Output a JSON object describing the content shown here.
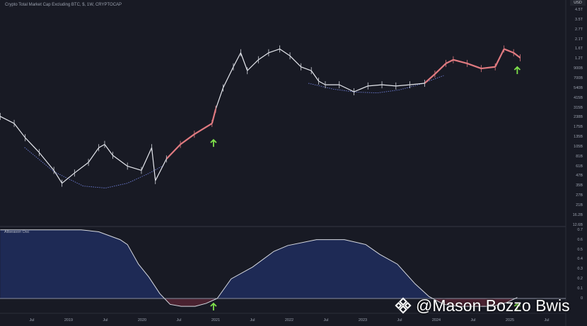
{
  "chart_data": [
    {
      "type": "line",
      "title": "Crypto Total Market Cap Excluding BTC, $, 1W, CRYPTOCAP",
      "currency_label": "USD",
      "yscale": "log",
      "ylabel": "USD",
      "ylim_billions": [
        12.6,
        4500
      ],
      "y_tick_labels": [
        "4.5T",
        "3.5T",
        "2.7T",
        "2.1T",
        "1.6T",
        "1.2T",
        "900B",
        "700B",
        "540B",
        "415B",
        "315B",
        "238B",
        "175B",
        "135B",
        "105B",
        "81B",
        "61B",
        "47B",
        "35B",
        "27B",
        "21B",
        "16.2B",
        "12.6B"
      ],
      "highlight_color": "#e07a80",
      "line_color": "#e6e8ee",
      "highlight_ranges_years": [
        [
          2020.4,
          2021.0
        ],
        [
          2023.85,
          2025.2
        ]
      ],
      "points": {
        "year": [
          2018.07,
          2018.26,
          2018.41,
          2018.6,
          2018.8,
          2018.91,
          2019.08,
          2019.27,
          2019.41,
          2019.49,
          2019.6,
          2019.8,
          2019.99,
          2020.13,
          2020.18,
          2020.33,
          2020.52,
          2020.71,
          2020.95,
          2021.0,
          2021.1,
          2021.24,
          2021.34,
          2021.43,
          2021.58,
          2021.72,
          2021.87,
          2022.01,
          2022.16,
          2022.3,
          2022.4,
          2022.49,
          2022.68,
          2022.88,
          2023.07,
          2023.26,
          2023.45,
          2023.64,
          2023.84,
          2023.98,
          2024.13,
          2024.23,
          2024.42,
          2024.61,
          2024.8,
          2024.92,
          2025.05,
          2025.14
        ],
        "market_cap_billions": [
          249,
          206,
          140,
          94,
          58,
          41,
          54,
          72,
          107,
          117,
          87,
          65,
          58,
          107,
          44,
          79,
          117,
          154,
          206,
          303,
          537,
          948,
          1388,
          856,
          1148,
          1388,
          1536,
          1276,
          948,
          856,
          645,
          585,
          585,
          484,
          566,
          585,
          566,
          585,
          609,
          781,
          1040,
          1148,
          1040,
          907,
          948,
          1536,
          1388,
          1213
        ]
      },
      "trend_curves": [
        {
          "name": "2018-2020 rounded bottom",
          "year": [
            2018.4,
            2018.8,
            2019.2,
            2019.5,
            2019.8,
            2020.1,
            2020.3
          ],
          "market_cap_billions": [
            108,
            56,
            38,
            36,
            41,
            54,
            67
          ]
        },
        {
          "name": "2022-2024 rounded bottom",
          "year": [
            2022.26,
            2022.6,
            2022.9,
            2023.2,
            2023.5,
            2023.8,
            2024.1
          ],
          "market_cap_billions": [
            609,
            520,
            480,
            470,
            510,
            600,
            750
          ]
        }
      ],
      "signals": [
        {
          "year": 2020.97,
          "label": "up-arrow"
        },
        {
          "year": 2025.1,
          "label": "up-arrow"
        }
      ]
    },
    {
      "type": "area",
      "title": "Altseason Osc",
      "ylim": [
        -0.1,
        0.72
      ],
      "y_tick_labels": [
        "0.7",
        "0.6",
        "0.5",
        "0.4",
        "0.3",
        "0.2",
        "0.1",
        "0"
      ],
      "positive_color": "#1e2a55",
      "negative_color": "#4a2230",
      "points": {
        "year": [
          2018.07,
          2019.17,
          2019.41,
          2019.7,
          2019.8,
          2019.95,
          2020.09,
          2020.24,
          2020.38,
          2020.53,
          2020.72,
          2020.87,
          2021.02,
          2021.21,
          2021.5,
          2021.79,
          2021.98,
          2022.37,
          2022.75,
          2023.04,
          2023.23,
          2023.47,
          2023.71,
          2023.9,
          2024.1,
          2024.29,
          2024.77,
          2024.96,
          2025.1
        ],
        "value": [
          0.7,
          0.7,
          0.68,
          0.6,
          0.55,
          0.35,
          0.22,
          0.05,
          -0.06,
          -0.08,
          -0.08,
          -0.05,
          0,
          0.2,
          0.32,
          0.48,
          0.54,
          0.6,
          0.6,
          0.55,
          0.45,
          0.35,
          0.15,
          0.02,
          -0.06,
          -0.08,
          -0.08,
          -0.04,
          0.01
        ]
      }
    }
  ],
  "x_tick_labels": [
    {
      "label": "Jul",
      "year": 2018.5
    },
    {
      "label": "2019",
      "year": 2019
    },
    {
      "label": "Jul",
      "year": 2019.5
    },
    {
      "label": "2020",
      "year": 2020
    },
    {
      "label": "Jul",
      "year": 2020.5
    },
    {
      "label": "2021",
      "year": 2021
    },
    {
      "label": "Jul",
      "year": 2021.5
    },
    {
      "label": "2022",
      "year": 2022
    },
    {
      "label": "Jul",
      "year": 2022.5
    },
    {
      "label": "2023",
      "year": 2023
    },
    {
      "label": "Jul",
      "year": 2023.5
    },
    {
      "label": "2024",
      "year": 2024
    },
    {
      "label": "Jul",
      "year": 2024.5
    },
    {
      "label": "2025",
      "year": 2025
    },
    {
      "label": "Jul",
      "year": 2025.5
    }
  ],
  "watermark": "@Mason Bozzo Bwis",
  "arrow_color": "#7ee04a"
}
